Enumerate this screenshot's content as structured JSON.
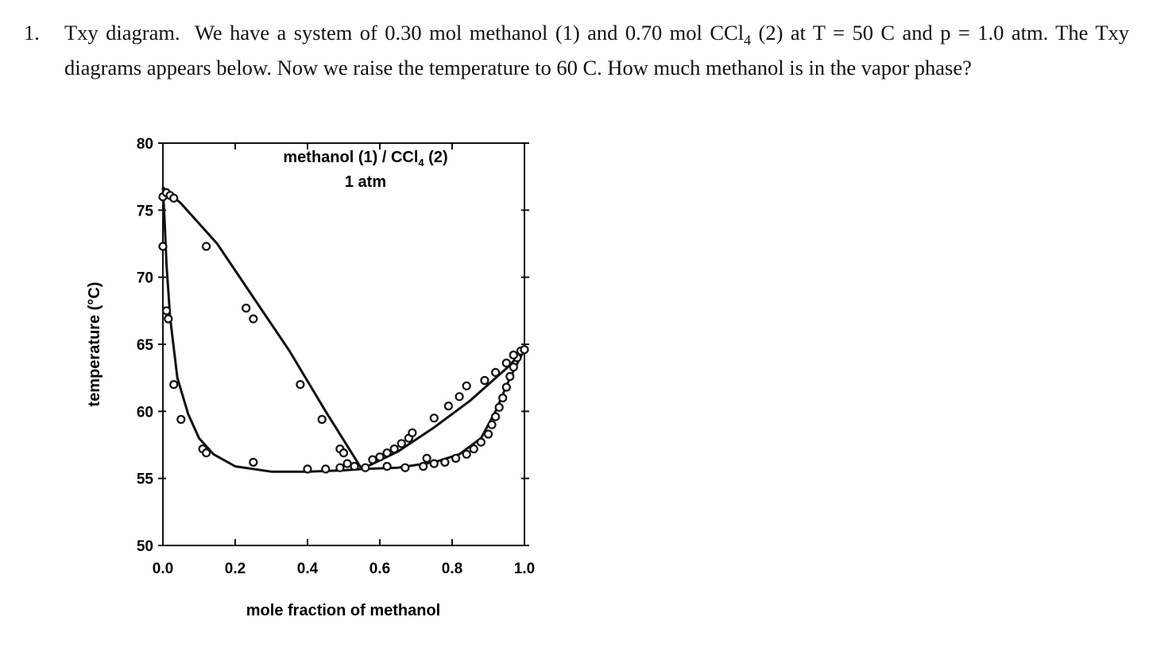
{
  "question": {
    "number": "1.",
    "title": "Txy diagram.",
    "text_a": "We have a system of 0.30 mol methanol (1) and 0.70 mol CCl",
    "sub_a": "4",
    "text_b": " (2) at T = 50 C and p = 1.0 atm. The Txy diagrams appears below.  Now we raise the temperature to 60 C.  How much methanol is in the vapor phase?"
  },
  "chart_data": {
    "type": "scatter",
    "title_a": "methanol (1) / CCl",
    "title_sub": "4",
    "title_b": " (2)",
    "subtitle": "1 atm",
    "xlabel": "mole fraction of methanol",
    "ylabel": "temperature (°C)",
    "xlim": [
      0,
      1.0
    ],
    "ylim": [
      50,
      80
    ],
    "x_ticks": [
      "0.0",
      "0.2",
      "0.4",
      "0.6",
      "0.8",
      "1.0"
    ],
    "y_ticks": [
      "50",
      "55",
      "60",
      "65",
      "70",
      "75",
      "80"
    ],
    "grid": false,
    "series": [
      {
        "kind": "liquid (bubble) curve",
        "style": "line",
        "points": [
          [
            0.0,
            76.7
          ],
          [
            0.005,
            74
          ],
          [
            0.01,
            71
          ],
          [
            0.02,
            67
          ],
          [
            0.04,
            62.5
          ],
          [
            0.07,
            59.8
          ],
          [
            0.1,
            58
          ],
          [
            0.14,
            56.8
          ],
          [
            0.2,
            55.9
          ],
          [
            0.3,
            55.5
          ],
          [
            0.4,
            55.5
          ],
          [
            0.5,
            55.6
          ],
          [
            0.55,
            55.7
          ],
          [
            0.65,
            55.8
          ],
          [
            0.75,
            56.2
          ],
          [
            0.82,
            56.8
          ],
          [
            0.88,
            58
          ],
          [
            0.92,
            60
          ],
          [
            0.96,
            62.5
          ],
          [
            1.0,
            64.6
          ]
        ]
      },
      {
        "kind": "vapor (dew) curve",
        "style": "line",
        "points": [
          [
            0.0,
            76.7
          ],
          [
            0.05,
            75.5
          ],
          [
            0.15,
            72.5
          ],
          [
            0.25,
            68.5
          ],
          [
            0.35,
            64.5
          ],
          [
            0.45,
            60
          ],
          [
            0.55,
            55.7
          ],
          [
            0.65,
            57
          ],
          [
            0.75,
            58.8
          ],
          [
            0.85,
            60.8
          ],
          [
            0.95,
            63.2
          ],
          [
            1.0,
            64.6
          ]
        ]
      },
      {
        "kind": "measured data",
        "style": "circles",
        "points": [
          [
            0.0,
            76
          ],
          [
            0.01,
            76.3
          ],
          [
            0.02,
            76.1
          ],
          [
            0.03,
            75.9
          ],
          [
            0.0,
            72.3
          ],
          [
            0.01,
            67.5
          ],
          [
            0.015,
            66.9
          ],
          [
            0.03,
            62
          ],
          [
            0.05,
            59.4
          ],
          [
            0.11,
            57.2
          ],
          [
            0.12,
            56.9
          ],
          [
            0.25,
            56.2
          ],
          [
            0.12,
            72.3
          ],
          [
            0.23,
            67.7
          ],
          [
            0.25,
            66.9
          ],
          [
            0.38,
            62
          ],
          [
            0.44,
            59.4
          ],
          [
            0.49,
            57.2
          ],
          [
            0.5,
            56.9
          ],
          [
            0.4,
            55.7
          ],
          [
            0.45,
            55.7
          ],
          [
            0.49,
            55.8
          ],
          [
            0.51,
            56.1
          ],
          [
            0.53,
            55.9
          ],
          [
            0.56,
            55.8
          ],
          [
            0.58,
            56.4
          ],
          [
            0.6,
            56.6
          ],
          [
            0.62,
            56.9
          ],
          [
            0.64,
            57.2
          ],
          [
            0.66,
            57.6
          ],
          [
            0.68,
            58
          ],
          [
            0.69,
            58.4
          ],
          [
            0.75,
            59.5
          ],
          [
            0.79,
            60.4
          ],
          [
            0.82,
            61.1
          ],
          [
            0.84,
            61.9
          ],
          [
            0.62,
            55.9
          ],
          [
            0.67,
            55.8
          ],
          [
            0.72,
            55.9
          ],
          [
            0.73,
            56.5
          ],
          [
            0.75,
            56.1
          ],
          [
            0.78,
            56.2
          ],
          [
            0.81,
            56.5
          ],
          [
            0.84,
            56.8
          ],
          [
            0.86,
            57.2
          ],
          [
            0.88,
            57.7
          ],
          [
            0.9,
            58.3
          ],
          [
            0.91,
            59
          ],
          [
            0.92,
            59.6
          ],
          [
            0.93,
            60.3
          ],
          [
            0.94,
            61
          ],
          [
            0.95,
            61.8
          ],
          [
            0.96,
            62.6
          ],
          [
            0.97,
            63.3
          ],
          [
            0.98,
            64
          ],
          [
            0.99,
            64.5
          ],
          [
            1.0,
            64.6
          ],
          [
            0.97,
            64.2
          ],
          [
            0.95,
            63.6
          ],
          [
            0.92,
            62.9
          ],
          [
            0.89,
            62.3
          ]
        ]
      }
    ]
  }
}
